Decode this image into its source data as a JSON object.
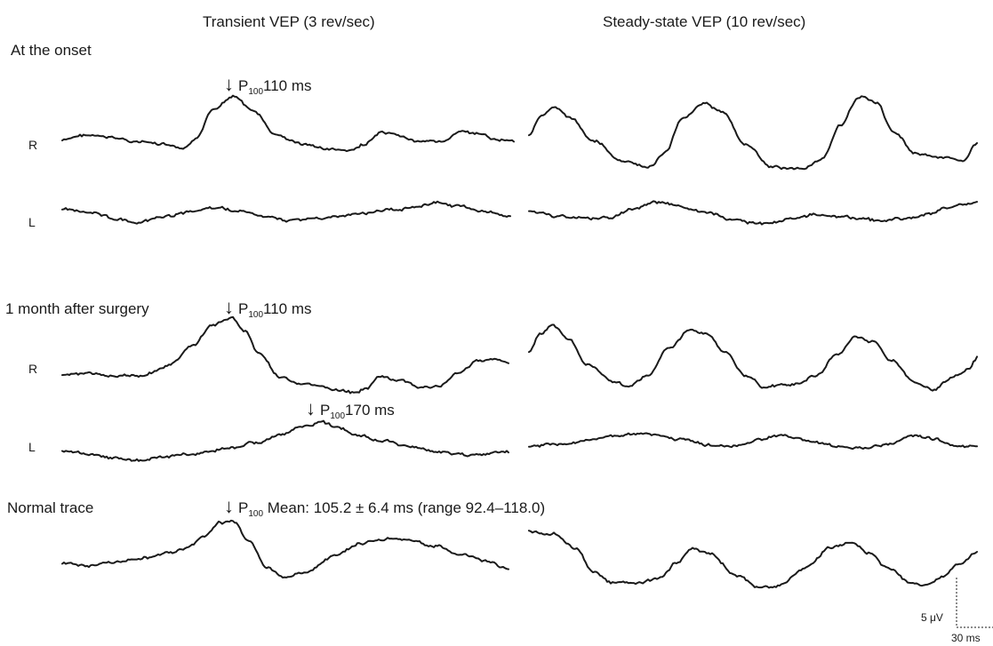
{
  "columns": {
    "transient": "Transient VEP (3 rev/sec)",
    "steady": "Steady-state VEP (10 rev/sec)"
  },
  "sections": {
    "onset": "At the onset",
    "month": "1 month after surgery",
    "normal": "Normal trace"
  },
  "eyes": {
    "right": "R",
    "left": "L"
  },
  "annotations": {
    "arrow": "↓",
    "p": "P",
    "p_sub": "100",
    "onset_r": "110 ms",
    "month_r": "110 ms",
    "month_l": "170 ms",
    "normal": " Mean: 105.2 ± 6.4 ms (range 92.4–118.0)"
  },
  "scale_bar": {
    "voltage": "5 μV",
    "time": "30 ms"
  },
  "traces": {
    "onset_r_transient": "peak",
    "onset_r_steady": "oscillation",
    "onset_l_transient": "flat",
    "onset_l_steady": "flat",
    "month_r_transient": "peak",
    "month_r_steady": "oscillation",
    "month_l_transient": "delayed-peak",
    "month_l_steady": "flat",
    "normal_transient": "peak",
    "normal_steady": "oscillation"
  }
}
